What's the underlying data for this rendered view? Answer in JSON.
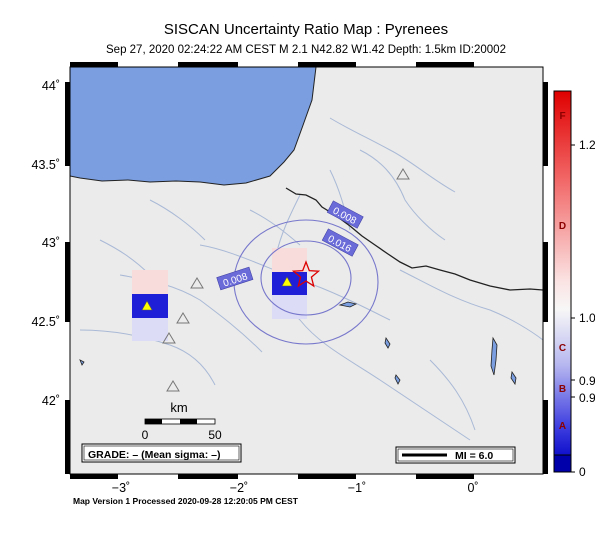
{
  "title": "SISCAN Uncertainty Ratio Map : Pyrenees",
  "subtitle": "Sep 27, 2020 02:24:22 AM CEST   M 2.1   N42.82 W1.42   Depth: 1.5km   ID:20002",
  "footer": "Map Version 1 Processed 2020-09-28 12:20:05 PM CEST",
  "axes": {
    "lat_labels": [
      "44˚",
      "43.5˚",
      "43˚",
      "42.5˚",
      "42˚"
    ],
    "lon_labels": [
      "−3˚",
      "−2˚",
      "−1˚",
      "0˚"
    ]
  },
  "contour_labels": [
    "0.008",
    "0.016",
    "0.008"
  ],
  "scale_bar": {
    "unit": "km",
    "min": "0",
    "max": "50"
  },
  "grade_box": "GRADE: – (Mean sigma: –)",
  "mmi_legend": "MI = 6.0",
  "colorbar": {
    "letter_labels": [
      "F",
      "D",
      "C",
      "B",
      "A"
    ],
    "value_labels": [
      "1.2",
      "1.0",
      "0.9",
      "0.9",
      "0"
    ]
  },
  "colors": {
    "sea": "#7a9ee0",
    "land": "#ebebeb",
    "rivers": "#a9b9d6",
    "contour": "#7777cc",
    "epicenter": "#dd0000",
    "station": "#ffff00",
    "high_ratio": "#cc0000",
    "low_ratio": "#0000aa"
  }
}
